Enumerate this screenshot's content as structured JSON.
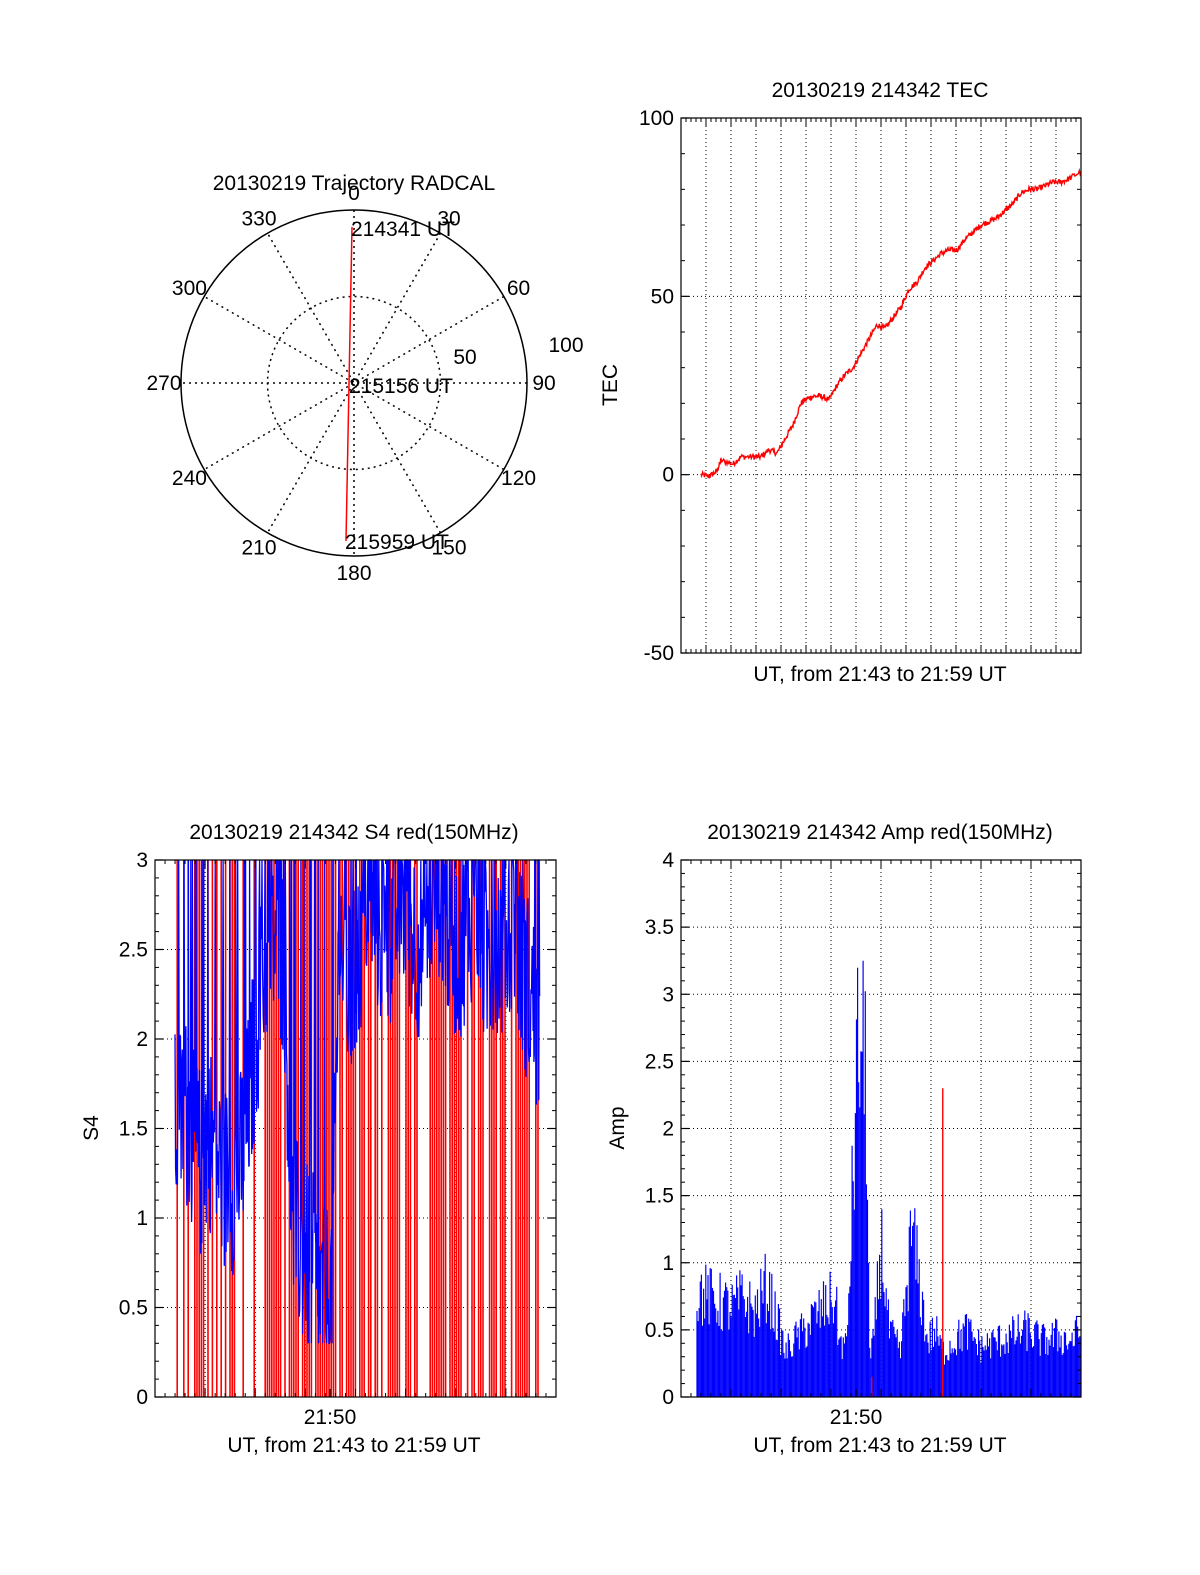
{
  "colors": {
    "red": "#ff0000",
    "blue": "#0000ff",
    "axis": "#000000",
    "grid": "#000000"
  },
  "polar": {
    "title": "20130219 Trajectory RADCAL",
    "azimuth_labels": [
      "0",
      "30",
      "60",
      "90",
      "120",
      "150",
      "180",
      "210",
      "240",
      "270",
      "300",
      "330"
    ],
    "radial_labels": [
      "50",
      "100"
    ],
    "start_label": "214341 UT",
    "mid_label": "215156 UT",
    "end_label": "215959 UT"
  },
  "chart_data": [
    {
      "id": "tec",
      "type": "line",
      "title": "20130219 214342 TEC",
      "xlabel": "UT, from 21:43 to 21:59 UT",
      "ylabel": "TEC",
      "ylim": [
        -50,
        100
      ],
      "yticks": [
        "-50",
        "0",
        "50",
        "100"
      ],
      "xlim_minutes": [
        21.43,
        21.99
      ],
      "grid": true,
      "series": [
        {
          "color": "#ff0000",
          "x": [
            0.05,
            0.07,
            0.09,
            0.1,
            0.13,
            0.15,
            0.18,
            0.2,
            0.22,
            0.24,
            0.26,
            0.28,
            0.3,
            0.31,
            0.33,
            0.35,
            0.37,
            0.39,
            0.41,
            0.43,
            0.45,
            0.47,
            0.49,
            0.51,
            0.53,
            0.55,
            0.57,
            0.59,
            0.61,
            0.63,
            0.65,
            0.67,
            0.69,
            0.71,
            0.73,
            0.75,
            0.77,
            0.79,
            0.81,
            0.83,
            0.85,
            0.87,
            0.89,
            0.91,
            0.93,
            0.95,
            0.97,
            1.0
          ],
          "y": [
            0,
            -0.5,
            1,
            4,
            3,
            5,
            5,
            5,
            7,
            6,
            10,
            14,
            20,
            21,
            22,
            22,
            21,
            25,
            28,
            30,
            34,
            38,
            42,
            41,
            44,
            47,
            52,
            54,
            58,
            60,
            62,
            63,
            63,
            66,
            68,
            70,
            71,
            72,
            74,
            76,
            79,
            80,
            80,
            81,
            82,
            82,
            83,
            85
          ]
        }
      ]
    },
    {
      "id": "s4",
      "type": "bar",
      "title": "20130219 214342 S4 red(150MHz)",
      "xlabel": "UT, from 21:43 to 21:59 UT",
      "ylabel": "S4",
      "ylim": [
        0,
        3
      ],
      "yticks": [
        "0",
        "0.5",
        "1",
        "1.5",
        "2",
        "2.5",
        "3"
      ],
      "xtick_labels": [
        "21:50"
      ],
      "grid": true,
      "series": [
        {
          "name": "",
          "color": "#0000ff",
          "x": [
            0.0,
            0.03,
            0.05,
            0.07,
            0.09,
            0.12,
            0.15,
            0.18,
            0.2,
            0.22,
            0.25,
            0.28,
            0.3,
            0.32,
            0.35,
            0.38,
            0.4,
            0.43,
            0.45,
            0.48,
            0.5,
            0.53,
            0.55,
            0.58,
            0.6,
            0.63,
            0.65,
            0.68,
            0.7,
            0.73,
            0.75,
            0.78,
            0.8,
            0.83,
            0.85,
            0.88,
            0.9,
            0.93,
            0.95,
            0.98,
            1.0
          ],
          "y": [
            1.5,
            1.6,
            1.4,
            1.3,
            1.5,
            1.3,
            1.2,
            1.3,
            1.6,
            2.0,
            2.5,
            2.6,
            2.4,
            1.0,
            0.8,
            0.7,
            0.5,
            0.6,
            2.6,
            2.2,
            2.4,
            2.9,
            2.7,
            2.5,
            2.7,
            2.8,
            2.6,
            2.5,
            2.8,
            2.9,
            2.6,
            2.5,
            2.7,
            2.8,
            2.4,
            2.6,
            2.5,
            2.7,
            2.4,
            2.2,
            2.0
          ]
        }
      ]
    },
    {
      "id": "amp",
      "type": "bar",
      "title": "20130219 214342 Amp red(150MHz)",
      "xlabel": "UT, from 21:43 to 21:59 UT",
      "ylabel": "Amp",
      "ylim": [
        0,
        4
      ],
      "yticks": [
        "0",
        "0.5",
        "1",
        "1.5",
        "2",
        "2.5",
        "3",
        "3.5",
        "4"
      ],
      "xtick_labels": [
        "21:50"
      ],
      "grid": true,
      "series": [
        {
          "name": "",
          "color": "#0000ff",
          "x": [
            0.0,
            0.03,
            0.06,
            0.09,
            0.12,
            0.15,
            0.18,
            0.2,
            0.23,
            0.25,
            0.28,
            0.3,
            0.33,
            0.36,
            0.37,
            0.39,
            0.42,
            0.44,
            0.45,
            0.46,
            0.48,
            0.5,
            0.53,
            0.56,
            0.6,
            0.62,
            0.64,
            0.67,
            0.7,
            0.74,
            0.78,
            0.82,
            0.86,
            0.9,
            0.94,
            0.97,
            1.0
          ],
          "y": [
            0.95,
            0.9,
            0.85,
            0.8,
            0.9,
            0.75,
            1.0,
            0.8,
            0.4,
            0.5,
            0.6,
            0.7,
            0.8,
            0.9,
            0.5,
            0.45,
            3.2,
            3.0,
            0.3,
            0.5,
            1.4,
            0.6,
            0.4,
            1.5,
            0.5,
            0.6,
            0.4,
            0.5,
            0.6,
            0.45,
            0.5,
            0.55,
            0.6,
            0.5,
            0.55,
            0.5,
            0.6
          ]
        },
        {
          "name": "",
          "color": "#ff0000",
          "x": [
            0.455,
            0.64
          ],
          "y": [
            0.15,
            2.3
          ]
        }
      ]
    }
  ]
}
